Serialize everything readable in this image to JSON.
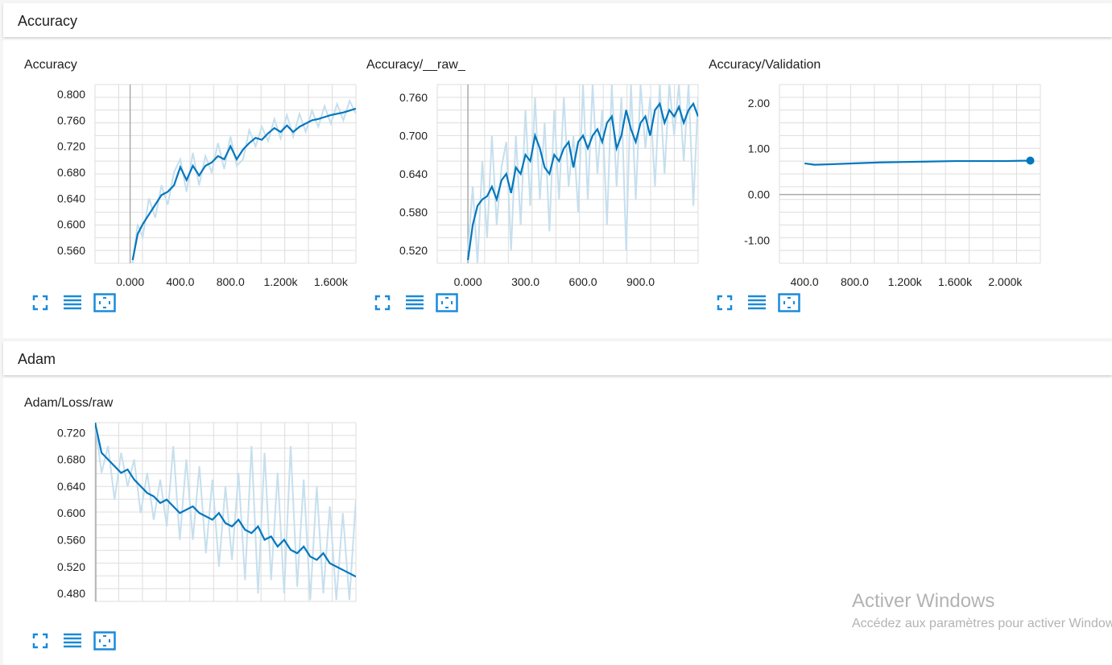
{
  "sections": [
    {
      "title": "Accuracy"
    },
    {
      "title": "Adam"
    }
  ],
  "colors": {
    "line": "#0277bd",
    "raw": "#c6dfee",
    "grid": "#dddddd",
    "axis": "#aaaaaa",
    "icon": "#1a8ad8"
  },
  "icons": [
    "fullscreen-icon",
    "list-icon",
    "fit-domain-icon"
  ],
  "watermark": {
    "title": "Activer Windows",
    "subtitle": "Accédez aux paramètres pour activer Windows."
  },
  "chart_data": [
    {
      "type": "line",
      "title": "Accuracy",
      "xlim": [
        -280,
        1800
      ],
      "ylim": [
        0.54,
        0.815
      ],
      "xticks": [
        0,
        400,
        800,
        1200,
        1600
      ],
      "xtick_labels": [
        "0.000",
        "400.0",
        "800.0",
        "1.200k",
        "1.600k"
      ],
      "yticks": [
        0.56,
        0.6,
        0.64,
        0.68,
        0.72,
        0.76,
        0.8
      ],
      "ytick_labels": [
        "0.560",
        "0.600",
        "0.640",
        "0.680",
        "0.720",
        "0.760",
        "0.800"
      ],
      "x": [
        20,
        60,
        100,
        150,
        200,
        250,
        300,
        350,
        400,
        450,
        500,
        550,
        600,
        650,
        700,
        750,
        800,
        850,
        900,
        950,
        1000,
        1050,
        1100,
        1150,
        1200,
        1250,
        1300,
        1350,
        1400,
        1450,
        1500,
        1550,
        1600,
        1650,
        1700,
        1750,
        1800
      ],
      "y": [
        0.545,
        0.585,
        0.6,
        0.615,
        0.63,
        0.645,
        0.65,
        0.66,
        0.688,
        0.668,
        0.69,
        0.675,
        0.69,
        0.695,
        0.705,
        0.7,
        0.72,
        0.7,
        0.715,
        0.725,
        0.733,
        0.73,
        0.74,
        0.748,
        0.742,
        0.752,
        0.742,
        0.75,
        0.755,
        0.76,
        0.762,
        0.765,
        0.768,
        0.77,
        0.772,
        0.775,
        0.778
      ],
      "raw_y": [
        0.54,
        0.6,
        0.58,
        0.64,
        0.61,
        0.66,
        0.63,
        0.68,
        0.7,
        0.65,
        0.71,
        0.66,
        0.705,
        0.68,
        0.725,
        0.685,
        0.735,
        0.69,
        0.7,
        0.745,
        0.72,
        0.75,
        0.728,
        0.762,
        0.732,
        0.768,
        0.735,
        0.77,
        0.742,
        0.775,
        0.75,
        0.782,
        0.755,
        0.785,
        0.76,
        0.79,
        0.77
      ]
    },
    {
      "type": "line",
      "title": "Accuracy/__raw_",
      "xlim": [
        -160,
        1200
      ],
      "ylim": [
        0.5,
        0.78
      ],
      "xticks": [
        0,
        300,
        600,
        900
      ],
      "xtick_labels": [
        "0.000",
        "300.0",
        "600.0",
        "900.0"
      ],
      "yticks": [
        0.52,
        0.58,
        0.64,
        0.7,
        0.76
      ],
      "ytick_labels": [
        "0.520",
        "0.580",
        "0.640",
        "0.700",
        "0.760"
      ],
      "x": [
        0,
        25,
        50,
        75,
        100,
        125,
        150,
        175,
        200,
        225,
        250,
        275,
        300,
        325,
        350,
        375,
        400,
        425,
        450,
        475,
        500,
        525,
        550,
        575,
        600,
        625,
        650,
        675,
        700,
        725,
        750,
        775,
        800,
        825,
        850,
        875,
        900,
        925,
        950,
        975,
        1000,
        1025,
        1050,
        1075,
        1100,
        1125,
        1150,
        1175,
        1200
      ],
      "y": [
        0.505,
        0.56,
        0.59,
        0.6,
        0.605,
        0.62,
        0.6,
        0.63,
        0.64,
        0.61,
        0.65,
        0.64,
        0.67,
        0.66,
        0.7,
        0.68,
        0.65,
        0.64,
        0.67,
        0.66,
        0.68,
        0.69,
        0.65,
        0.69,
        0.7,
        0.68,
        0.7,
        0.71,
        0.69,
        0.72,
        0.73,
        0.68,
        0.7,
        0.74,
        0.71,
        0.69,
        0.72,
        0.73,
        0.7,
        0.74,
        0.75,
        0.72,
        0.74,
        0.73,
        0.745,
        0.72,
        0.74,
        0.75,
        0.73
      ],
      "raw_y": [
        0.52,
        0.62,
        0.5,
        0.66,
        0.54,
        0.7,
        0.56,
        0.65,
        0.69,
        0.52,
        0.7,
        0.56,
        0.74,
        0.59,
        0.76,
        0.6,
        0.72,
        0.55,
        0.74,
        0.6,
        0.76,
        0.62,
        0.7,
        0.58,
        0.78,
        0.6,
        0.78,
        0.64,
        0.74,
        0.56,
        0.78,
        0.62,
        0.76,
        0.52,
        0.78,
        0.6,
        0.78,
        0.68,
        0.76,
        0.62,
        0.78,
        0.64,
        0.78,
        0.7,
        0.78,
        0.66,
        0.78,
        0.59,
        0.76
      ]
    },
    {
      "type": "line",
      "title": "Accuracy/Validation",
      "xlim": [
        200,
        2280
      ],
      "ylim": [
        -1.5,
        2.4
      ],
      "xticks": [
        400,
        800,
        1200,
        1600,
        2000
      ],
      "xtick_labels": [
        "400.0",
        "800.0",
        "1.200k",
        "1.600k",
        "2.000k"
      ],
      "yticks": [
        -1.0,
        0.0,
        1.0,
        2.0
      ],
      "ytick_labels": [
        "-1.00",
        "0.00",
        "1.00",
        "2.00"
      ],
      "x": [
        400,
        480,
        600,
        800,
        1000,
        1200,
        1400,
        1600,
        1800,
        2000,
        2200
      ],
      "y": [
        0.68,
        0.65,
        0.66,
        0.68,
        0.7,
        0.71,
        0.72,
        0.73,
        0.73,
        0.73,
        0.74
      ]
    },
    {
      "type": "line",
      "title": "Adam/Loss/raw",
      "xlim": [
        0,
        1000
      ],
      "ylim": [
        0.468,
        0.735
      ],
      "xticks": [],
      "xtick_labels": [],
      "yticks": [
        0.48,
        0.52,
        0.56,
        0.6,
        0.64,
        0.68,
        0.72
      ],
      "ytick_labels": [
        "0.480",
        "0.520",
        "0.560",
        "0.600",
        "0.640",
        "0.680",
        "0.720"
      ],
      "x": [
        0,
        25,
        50,
        75,
        100,
        125,
        150,
        175,
        200,
        225,
        250,
        275,
        300,
        325,
        350,
        375,
        400,
        425,
        450,
        475,
        500,
        525,
        550,
        575,
        600,
        625,
        650,
        675,
        700,
        725,
        750,
        775,
        800,
        825,
        850,
        875,
        900,
        925,
        950,
        975,
        1000
      ],
      "y": [
        0.735,
        0.69,
        0.68,
        0.67,
        0.66,
        0.665,
        0.65,
        0.64,
        0.63,
        0.625,
        0.615,
        0.62,
        0.61,
        0.6,
        0.605,
        0.61,
        0.6,
        0.595,
        0.59,
        0.6,
        0.585,
        0.58,
        0.59,
        0.575,
        0.57,
        0.58,
        0.56,
        0.565,
        0.55,
        0.56,
        0.545,
        0.54,
        0.55,
        0.535,
        0.53,
        0.54,
        0.525,
        0.52,
        0.515,
        0.51,
        0.505
      ],
      "raw_y": [
        0.735,
        0.66,
        0.7,
        0.62,
        0.69,
        0.64,
        0.68,
        0.6,
        0.66,
        0.59,
        0.65,
        0.58,
        0.7,
        0.56,
        0.68,
        0.56,
        0.67,
        0.54,
        0.65,
        0.52,
        0.64,
        0.53,
        0.66,
        0.5,
        0.7,
        0.48,
        0.69,
        0.5,
        0.66,
        0.48,
        0.7,
        0.49,
        0.65,
        0.47,
        0.64,
        0.48,
        0.61,
        0.47,
        0.6,
        0.47,
        0.62
      ]
    }
  ]
}
